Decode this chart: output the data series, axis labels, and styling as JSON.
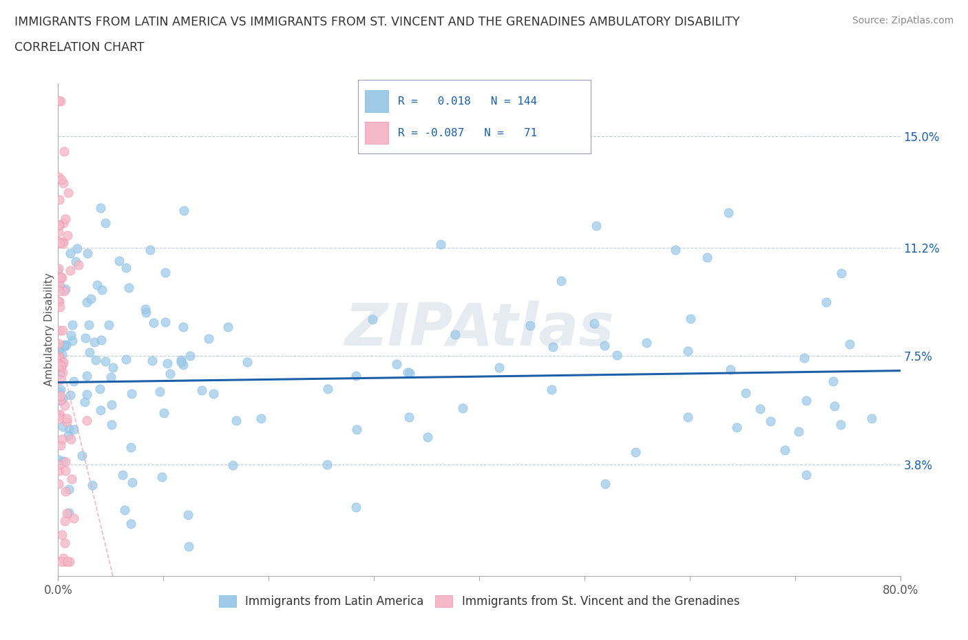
{
  "title_line1": "IMMIGRANTS FROM LATIN AMERICA VS IMMIGRANTS FROM ST. VINCENT AND THE GRENADINES AMBULATORY DISABILITY",
  "title_line2": "CORRELATION CHART",
  "source_text": "Source: ZipAtlas.com",
  "ylabel": "Ambulatory Disability",
  "xlim": [
    0.0,
    0.8
  ],
  "ylim": [
    0.0,
    0.168
  ],
  "yticks": [
    0.038,
    0.075,
    0.112,
    0.15
  ],
  "ytick_labels": [
    "3.8%",
    "7.5%",
    "11.2%",
    "15.0%"
  ],
  "xticks_show": [
    0.0,
    0.8
  ],
  "xtick_labels_show": [
    "0.0%",
    "80.0%"
  ],
  "xticks_minor": [
    0.1,
    0.2,
    0.3,
    0.4,
    0.5,
    0.6,
    0.7
  ],
  "blue_color": "#9ecae8",
  "blue_edge_color": "#7ab8e0",
  "pink_color": "#f5b8c8",
  "pink_edge_color": "#f090a8",
  "blue_line_color": "#1a5fa8",
  "pink_line_color": "#e8a0b0",
  "grid_color": "#c0ccd8",
  "watermark": "ZIPAtlas",
  "R_blue": 0.018,
  "N_blue": 144,
  "R_pink": -0.087,
  "N_pink": 71,
  "legend_label_blue": "Immigrants from Latin America",
  "legend_label_pink": "Immigrants from St. Vincent and the Grenadines",
  "blue_seed": 42,
  "pink_seed": 99
}
